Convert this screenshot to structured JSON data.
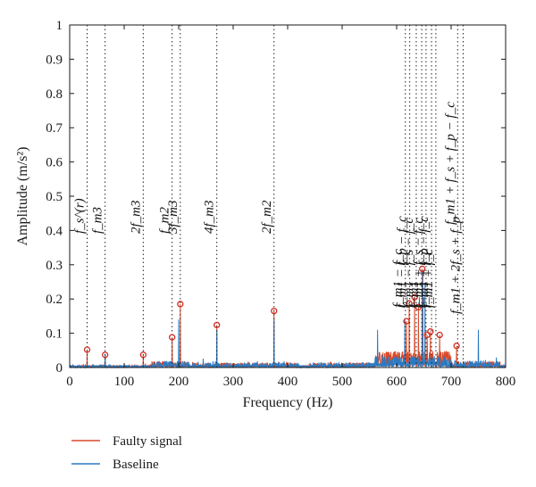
{
  "chart_data": {
    "type": "line",
    "title": "",
    "xlabel": "Frequency (Hz)",
    "ylabel": "Amplitude (m/s²)",
    "xlim": [
      0,
      800
    ],
    "ylim": [
      0,
      1
    ],
    "x_ticks": [
      "0",
      "100",
      "200",
      "300",
      "400",
      "500",
      "600",
      "700",
      "800"
    ],
    "y_ticks": [
      "0",
      "0.1",
      "0.2",
      "0.3",
      "0.4",
      "0.5",
      "0.6",
      "0.7",
      "0.8",
      "0.9",
      "1"
    ],
    "grid": false,
    "legend_position": "bottom-left",
    "series": [
      {
        "name": "Faulty signal",
        "color": "#d94a2b",
        "peaks": [
          {
            "x": 32,
            "y": 0.052
          },
          {
            "x": 65,
            "y": 0.037
          },
          {
            "x": 135,
            "y": 0.037
          },
          {
            "x": 188,
            "y": 0.088
          },
          {
            "x": 203,
            "y": 0.185
          },
          {
            "x": 270,
            "y": 0.124
          },
          {
            "x": 375,
            "y": 0.165
          },
          {
            "x": 618,
            "y": 0.135
          },
          {
            "x": 623,
            "y": 0.187
          },
          {
            "x": 633,
            "y": 0.205
          },
          {
            "x": 640,
            "y": 0.176
          },
          {
            "x": 647,
            "y": 0.288
          },
          {
            "x": 656,
            "y": 0.095
          },
          {
            "x": 662,
            "y": 0.105
          },
          {
            "x": 679,
            "y": 0.095
          },
          {
            "x": 710,
            "y": 0.063
          }
        ]
      },
      {
        "name": "Baseline",
        "color": "#2a7ac2",
        "peaks": [
          {
            "x": 65,
            "y": 0.04
          },
          {
            "x": 200,
            "y": 0.14
          },
          {
            "x": 270,
            "y": 0.11
          },
          {
            "x": 375,
            "y": 0.14
          },
          {
            "x": 565,
            "y": 0.11
          },
          {
            "x": 615,
            "y": 0.14
          },
          {
            "x": 648,
            "y": 0.28
          },
          {
            "x": 652,
            "y": 0.24
          },
          {
            "x": 750,
            "y": 0.11
          }
        ]
      }
    ],
    "markers": [
      {
        "x": 32,
        "y": 0.052
      },
      {
        "x": 65,
        "y": 0.037
      },
      {
        "x": 135,
        "y": 0.037
      },
      {
        "x": 188,
        "y": 0.088
      },
      {
        "x": 203,
        "y": 0.185
      },
      {
        "x": 270,
        "y": 0.124
      },
      {
        "x": 375,
        "y": 0.165
      },
      {
        "x": 618,
        "y": 0.135
      },
      {
        "x": 623,
        "y": 0.187
      },
      {
        "x": 633,
        "y": 0.205
      },
      {
        "x": 640,
        "y": 0.176
      },
      {
        "x": 647,
        "y": 0.288
      },
      {
        "x": 656,
        "y": 0.095
      },
      {
        "x": 662,
        "y": 0.105
      },
      {
        "x": 679,
        "y": 0.095
      },
      {
        "x": 710,
        "y": 0.063
      }
    ],
    "annotations": [
      {
        "x": 32,
        "text": "f_s^(r)"
      },
      {
        "x": 65,
        "text": "f_m3"
      },
      {
        "x": 135,
        "text": "2f_m3"
      },
      {
        "x": 188,
        "text": "f_m2"
      },
      {
        "x": 203,
        "text": "3f_m3"
      },
      {
        "x": 270,
        "text": "4f_m3"
      },
      {
        "x": 375,
        "text": "2f_m2"
      },
      {
        "x": 616,
        "text": "f_m1 − f_c"
      },
      {
        "x": 624,
        "text": "f_m1 − f_p − f_c"
      },
      {
        "x": 636,
        "text": "f_m1 − f_s − f_c"
      },
      {
        "x": 646,
        "text": "f_m1"
      },
      {
        "x": 654,
        "text": "f_m1 + f_s − f_c"
      },
      {
        "x": 664,
        "text": "f_m1 + f_p − f_c"
      },
      {
        "x": 672,
        "text": "f_m1 + f_c"
      },
      {
        "x": 712,
        "text": "f_m1 + f_s + f_p − f_c"
      },
      {
        "x": 722,
        "text": "f_m1 + 2f_s + f_p"
      }
    ]
  }
}
